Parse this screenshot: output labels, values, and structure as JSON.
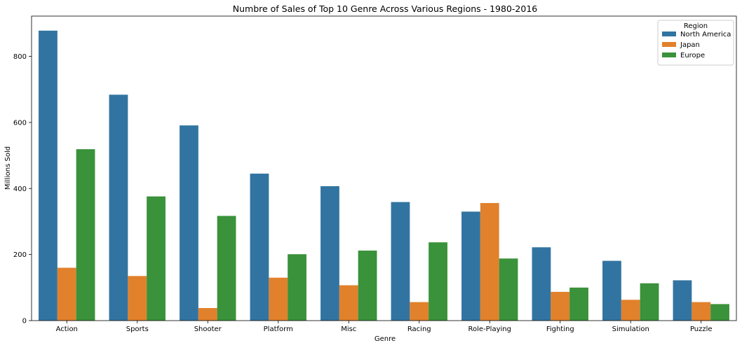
{
  "chart_data": {
    "type": "bar",
    "title": "Numbre of Sales of Top 10 Genre Across Various Regions - 1980-2016",
    "xlabel": "Genre",
    "ylabel": "Millions Sold",
    "categories": [
      "Action",
      "Sports",
      "Shooter",
      "Platform",
      "Misc",
      "Racing",
      "Role-Playing",
      "Fighting",
      "Simulation",
      "Puzzle"
    ],
    "series": [
      {
        "name": "North America",
        "color": "#3274a1",
        "values": [
          878,
          684,
          591,
          445,
          407,
          359,
          330,
          222,
          181,
          122
        ]
      },
      {
        "name": "Japan",
        "color": "#e1812c",
        "values": [
          160,
          135,
          38,
          130,
          107,
          56,
          356,
          87,
          63,
          56
        ]
      },
      {
        "name": "Europe",
        "color": "#3a923a",
        "values": [
          519,
          376,
          317,
          201,
          212,
          237,
          188,
          100,
          113,
          50
        ]
      }
    ],
    "ylim": [
      0,
      922
    ],
    "yticks": [
      0,
      200,
      400,
      600,
      800
    ],
    "grid": false,
    "legend": {
      "title": "Region",
      "position": "top-right"
    }
  }
}
